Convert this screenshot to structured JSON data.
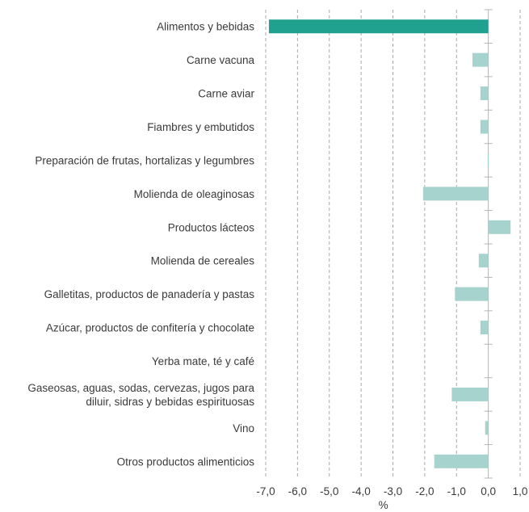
{
  "chart_data": {
    "type": "bar",
    "orientation": "horizontal",
    "categories": [
      [
        "Alimentos y bebidas"
      ],
      [
        "Carne vacuna"
      ],
      [
        "Carne aviar"
      ],
      [
        "Fiambres y embutidos"
      ],
      [
        "Preparación de frutas, hortalizas y legumbres"
      ],
      [
        "Molienda de oleaginosas"
      ],
      [
        "Productos lácteos"
      ],
      [
        "Molienda de cereales"
      ],
      [
        "Galletitas, productos de panadería y pastas"
      ],
      [
        "Azúcar, productos de confitería y chocolate"
      ],
      [
        "Yerba mate, té y café"
      ],
      [
        "Gaseosas, aguas, sodas, cervezas, jugos para",
        "diluir, sidras y bebidas espirituosas"
      ],
      [
        "Vino"
      ],
      [
        "Otros productos alimenticios"
      ]
    ],
    "values": [
      -6.9,
      -0.5,
      -0.25,
      -0.25,
      -0.02,
      -2.05,
      0.7,
      -0.3,
      -1.05,
      -0.25,
      0.0,
      -1.15,
      -0.1,
      -1.7
    ],
    "highlight_index": 0,
    "colors": {
      "highlight": "#20a08f",
      "bar": "#a6d3cd",
      "grid": "#a9a9a9",
      "axis": "#b5b5b5"
    },
    "xlabel": "%",
    "ylabel": "",
    "xlim": [
      -7.0,
      1.0
    ],
    "xticks": [
      "-7,0",
      "-6,0",
      "-5,0",
      "-4,0",
      "-3,0",
      "-2,0",
      "-1,0",
      "0,0",
      "1,0"
    ],
    "grid": "vertical dashed"
  }
}
